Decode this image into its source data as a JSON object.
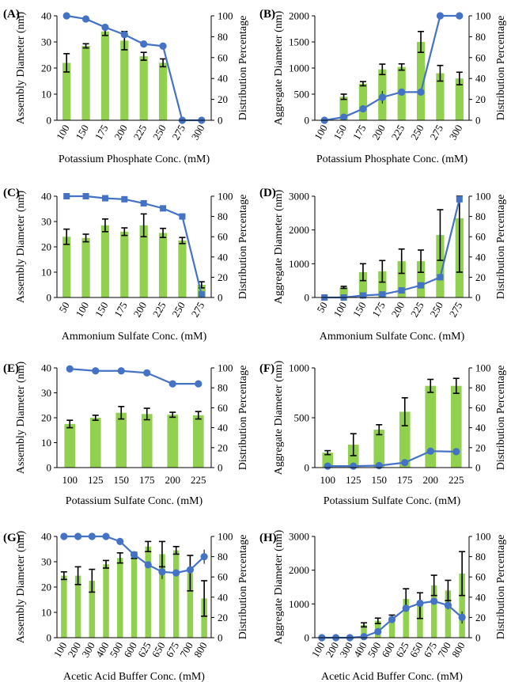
{
  "figure": {
    "label": "eight-panel combined bar and line charts"
  },
  "colors": {
    "bar": "#92d050",
    "line": "#4472c4",
    "marker": "#4472c4",
    "axis": "#000000",
    "error": "#000000"
  },
  "chart_data": [
    {
      "panel": "(A)",
      "type": "bar+line",
      "xlabel": "Potassium Phosphate Conc. (mM)",
      "ylabel": "Assembly Diameter (nm)",
      "y2label": "Distribution Percentage",
      "categories": [
        "100",
        "150",
        "175",
        "200",
        "225",
        "250",
        "275",
        "300"
      ],
      "bars": [
        22,
        28.5,
        34,
        30.5,
        24.5,
        22,
        null,
        null
      ],
      "bar_errors": [
        3.5,
        0.8,
        1.5,
        3.5,
        1.5,
        1.5,
        null,
        null
      ],
      "line": [
        100,
        97,
        89,
        82,
        73,
        71,
        0,
        0
      ],
      "line_errors": [
        0,
        0,
        0,
        2,
        1,
        2,
        0,
        0
      ],
      "marker": "circle",
      "ylim": [
        0,
        40
      ],
      "yticks": [
        0,
        10,
        20,
        30,
        40
      ],
      "y2lim": [
        0,
        100
      ],
      "y2ticks": [
        0,
        20,
        40,
        60,
        80,
        100
      ]
    },
    {
      "panel": "(B)",
      "type": "bar+line",
      "xlabel": "Potassium Phosphate Conc. (mM)",
      "ylabel": "Aggregate Diameter (nm)",
      "y2label": "Distribution Percentage",
      "categories": [
        "100",
        "150",
        "175",
        "200",
        "225",
        "250",
        "275",
        "300"
      ],
      "bars": [
        null,
        450,
        700,
        975,
        1020,
        1500,
        900,
        800
      ],
      "bar_errors": [
        null,
        50,
        40,
        100,
        60,
        200,
        150,
        120
      ],
      "line": [
        0,
        3,
        11,
        22,
        27,
        27,
        100,
        100
      ],
      "line_errors": [
        0,
        1,
        2,
        6,
        2,
        3,
        0,
        0
      ],
      "marker": "circle",
      "ylim": [
        0,
        2000
      ],
      "yticks": [
        0,
        500,
        1000,
        1500,
        2000
      ],
      "y2lim": [
        0,
        100
      ],
      "y2ticks": [
        0,
        20,
        40,
        60,
        80,
        100
      ]
    },
    {
      "panel": "(C)",
      "type": "bar+line",
      "xlabel": "Ammonium Sulfate Conc. (mM)",
      "ylabel": "Assembly Diameter (nm)",
      "y2label": "Distribution Percentage",
      "categories": [
        "50",
        "100",
        "150",
        "175",
        "200",
        "225",
        "250",
        "275"
      ],
      "bars": [
        24,
        23.5,
        28.5,
        26,
        28.5,
        25.5,
        22.5,
        5
      ],
      "bar_errors": [
        3,
        1.5,
        2.5,
        1.5,
        4.5,
        1.8,
        1.2,
        1.2
      ],
      "line": [
        100,
        100,
        98,
        97,
        93,
        88,
        80,
        3
      ],
      "line_errors": [
        0,
        0,
        0,
        0,
        0,
        2,
        2,
        1
      ],
      "marker": "square",
      "ylim": [
        0,
        40
      ],
      "yticks": [
        0,
        10,
        20,
        30,
        40
      ],
      "y2lim": [
        0,
        100
      ],
      "y2ticks": [
        0,
        20,
        40,
        60,
        80,
        100
      ]
    },
    {
      "panel": "(D)",
      "type": "bar+line",
      "xlabel": "Ammonium Sulfate Conc. (mM)",
      "ylabel": "Aggregate Diameter (nm)",
      "y2label": "Distribution Percentage",
      "categories": [
        "50",
        "100",
        "150",
        "175",
        "200",
        "225",
        "250",
        "275"
      ],
      "bars": [
        null,
        300,
        750,
        775,
        1075,
        1075,
        1850,
        2350
      ],
      "bar_errors": [
        null,
        30,
        250,
        320,
        360,
        330,
        750,
        1600
      ],
      "line": [
        0,
        0,
        2,
        3,
        7,
        12,
        20,
        97
      ],
      "line_errors": [
        0,
        0,
        1,
        1,
        2,
        3,
        3,
        0
      ],
      "marker": "square",
      "ylim": [
        0,
        3000
      ],
      "yticks": [
        0,
        1000,
        2000,
        3000
      ],
      "y2lim": [
        0,
        100
      ],
      "y2ticks": [
        0,
        20,
        40,
        60,
        80,
        100
      ]
    },
    {
      "panel": "(E)",
      "type": "bar+line",
      "xlabel": "Potassium Sulfate Conc. (mM)",
      "ylabel": "Assembly Diameter (nm)",
      "y2label": "Distribution Percentage",
      "categories": [
        "100",
        "125",
        "150",
        "175",
        "200",
        "225"
      ],
      "bars": [
        17.5,
        20,
        22,
        21.5,
        21.2,
        21
      ],
      "bar_errors": [
        1.5,
        1,
        2.5,
        2.3,
        1,
        1.5
      ],
      "line": [
        99,
        97,
        97,
        95,
        84,
        84
      ],
      "line_errors": [
        0,
        0,
        0,
        0,
        0,
        1
      ],
      "marker": "circle",
      "ylim": [
        0,
        40
      ],
      "yticks": [
        0,
        10,
        20,
        30,
        40
      ],
      "y2lim": [
        0,
        100
      ],
      "y2ticks": [
        0,
        20,
        40,
        60,
        80,
        100
      ]
    },
    {
      "panel": "(F)",
      "type": "bar+line",
      "xlabel": "Potassium Sulfate Conc. (mM)",
      "ylabel": "Aggregate Diameter (nm)",
      "y2label": "Distribution Percentage",
      "categories": [
        "100",
        "125",
        "150",
        "175",
        "200",
        "225"
      ],
      "bars": [
        150,
        230,
        380,
        560,
        820,
        820
      ],
      "bar_errors": [
        20,
        110,
        50,
        140,
        65,
        75
      ],
      "line": [
        1.5,
        1.5,
        2,
        5,
        16.5,
        16
      ],
      "line_errors": [
        0,
        0,
        0,
        0,
        0,
        0
      ],
      "marker": "circle",
      "ylim": [
        0,
        1000
      ],
      "yticks": [
        0,
        500,
        1000
      ],
      "y2lim": [
        0,
        100
      ],
      "y2ticks": [
        0,
        20,
        40,
        60,
        80,
        100
      ]
    },
    {
      "panel": "(G)",
      "type": "bar+line",
      "xlabel": "Acetic Acid Buffer Conc. (mM)",
      "ylabel": "Assembly Diameter (nm)",
      "y2label": "Distribution Percentage",
      "categories": [
        "100",
        "200",
        "300",
        "400",
        "500",
        "600",
        "625",
        "650",
        "675",
        "700",
        "800"
      ],
      "bars": [
        24.5,
        24.5,
        22.5,
        29,
        31.5,
        32.5,
        36,
        33,
        34.5,
        25.5,
        15.5
      ],
      "bar_errors": [
        1.5,
        3.5,
        4.5,
        1.5,
        2,
        1.2,
        2,
        5,
        1.5,
        7,
        7
      ],
      "line": [
        100,
        100,
        100,
        100,
        95,
        82,
        72,
        65,
        64,
        67,
        80
      ],
      "line_errors": [
        0,
        0,
        0,
        0,
        0,
        0,
        3,
        7,
        0,
        12,
        7
      ],
      "marker": "circle",
      "ylim": [
        0,
        40
      ],
      "yticks": [
        0,
        10,
        20,
        30,
        40
      ],
      "y2lim": [
        0,
        100
      ],
      "y2ticks": [
        0,
        20,
        40,
        60,
        80,
        100
      ]
    },
    {
      "panel": "(H)",
      "type": "bar+line",
      "xlabel": "Acetic Acid Buffer Conc. (mM)",
      "ylabel": "Aggregate Diameter (nm)",
      "y2label": "Distribution Percentage",
      "categories": [
        "100",
        "200",
        "300",
        "400",
        "500",
        "600",
        "625",
        "650",
        "675",
        "700",
        "800"
      ],
      "bars": [
        null,
        null,
        null,
        380,
        500,
        620,
        1150,
        950,
        1550,
        1400,
        1900
      ],
      "bar_errors": [
        null,
        null,
        null,
        60,
        80,
        50,
        300,
        380,
        300,
        300,
        650
      ],
      "line": [
        0,
        0,
        0,
        1,
        6,
        18,
        29,
        34,
        36,
        32,
        20
      ],
      "line_errors": [
        0,
        0,
        0,
        0,
        1,
        2,
        3,
        4,
        3,
        4,
        6
      ],
      "marker": "circle",
      "ylim": [
        0,
        3000
      ],
      "yticks": [
        0,
        1000,
        2000,
        3000
      ],
      "y2lim": [
        0,
        100
      ],
      "y2ticks": [
        0,
        20,
        40,
        60,
        80,
        100
      ]
    }
  ]
}
